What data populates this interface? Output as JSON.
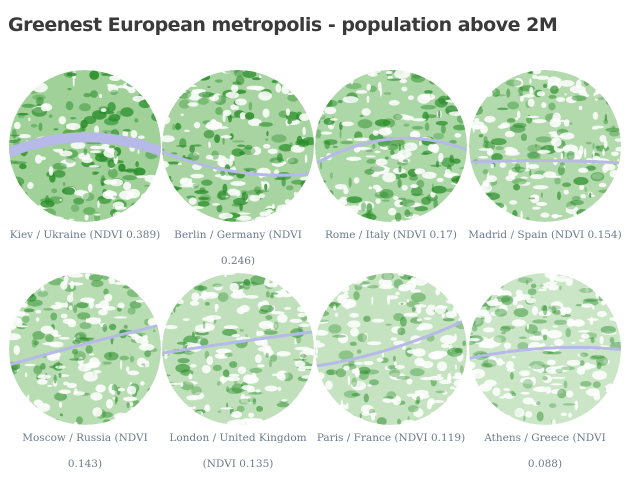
{
  "title": "Greenest European metropolis - population above 2M",
  "items": [
    {
      "caption": "Kiev / Ukraine (NDVI 0.389)"
    },
    {
      "caption": "Berlin / Germany (NDVI 0.246)"
    },
    {
      "caption": "Rome / Italy (NDVI 0.17)"
    },
    {
      "caption": "Madrid / Spain (NDVI 0.154)"
    },
    {
      "caption": "Moscow / Russia (NDVI 0.143)"
    },
    {
      "caption": "London / United Kingdom (NDVI 0.135)"
    },
    {
      "caption": "Paris / France (NDVI 0.119)"
    },
    {
      "caption": "Athens / Greece (NDVI 0.088)"
    }
  ]
}
